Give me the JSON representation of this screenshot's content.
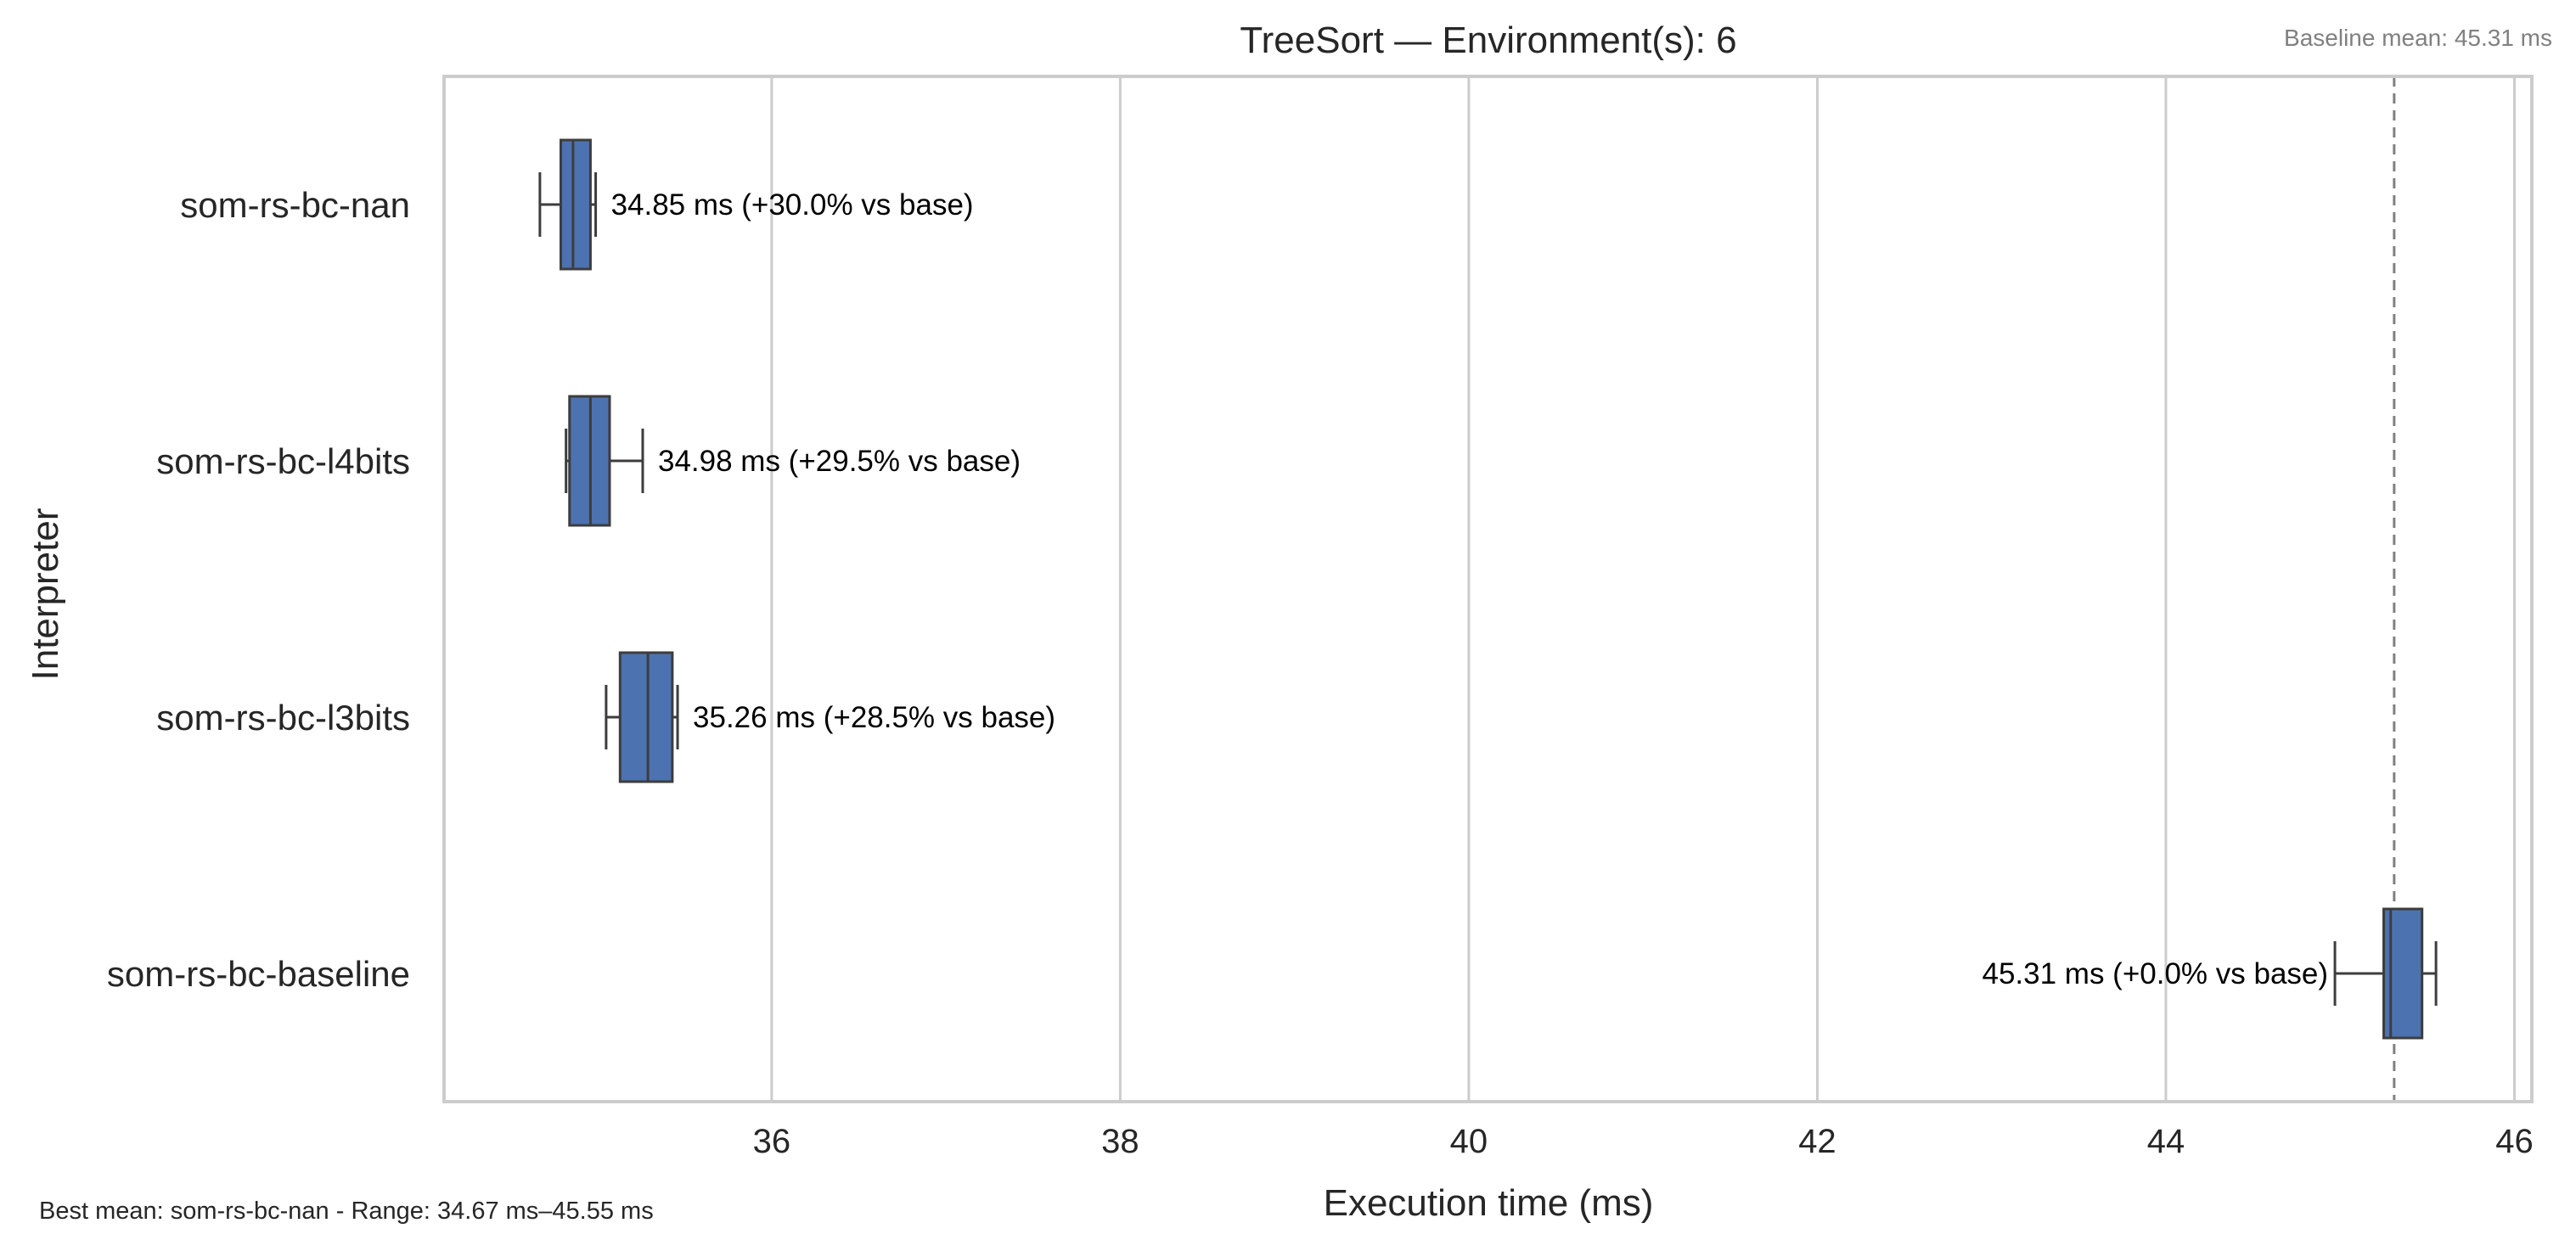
{
  "chart_data": {
    "type": "box",
    "title": "TreeSort — Environment(s): 6",
    "xlabel": "Execution time (ms)",
    "ylabel": "Interpreter",
    "xlim": [
      34.12,
      46.1
    ],
    "xticks": [
      36,
      38,
      40,
      42,
      44,
      46
    ],
    "grid": "vertical",
    "baseline_mean": 45.31,
    "baseline_note": "Baseline mean: 45.31 ms",
    "footnote": "Best mean: som-rs-bc-nan - Range: 34.67 ms–45.55 ms",
    "colors": {
      "box_fill": "#4c72b0",
      "box_edge": "#3d3d3d",
      "grid": "#cccccc",
      "frame": "#cccccc",
      "baseline_line": "#808080",
      "note_text": "#808080"
    },
    "series": [
      {
        "name": "som-rs-bc-nan",
        "min": 34.67,
        "q1": 34.79,
        "median": 34.86,
        "q3": 34.96,
        "max": 34.99,
        "label": "34.85 ms  (+30.0% vs base)"
      },
      {
        "name": "som-rs-bc-l4bits",
        "min": 34.82,
        "q1": 34.84,
        "median": 34.96,
        "q3": 35.07,
        "max": 35.26,
        "label": "34.98 ms  (+29.5% vs base)"
      },
      {
        "name": "som-rs-bc-l3bits",
        "min": 35.05,
        "q1": 35.13,
        "median": 35.29,
        "q3": 35.43,
        "max": 35.46,
        "label": "35.26 ms  (+28.5% vs base)"
      },
      {
        "name": "som-rs-bc-baseline",
        "min": 44.97,
        "q1": 45.25,
        "median": 45.29,
        "q3": 45.47,
        "max": 45.55,
        "label": "45.31 ms  (+0.0% vs base)"
      }
    ]
  }
}
